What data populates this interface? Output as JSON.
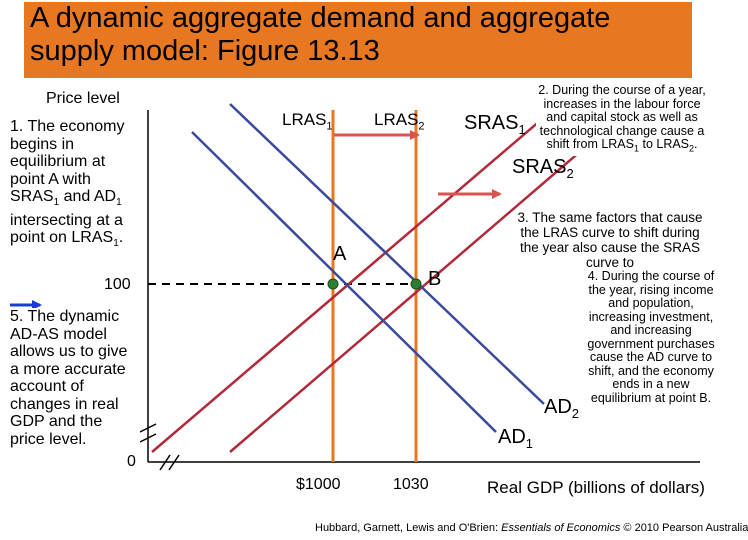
{
  "title": "A dynamic aggregate demand and aggregate supply model: Figure 13.13",
  "axes": {
    "y_label": "Price level",
    "x_label": "Real GDP (billions of dollars)",
    "y_tick_100": "100",
    "y_origin": "0",
    "x_tick_1000": "$1000",
    "x_tick_1030": "1030"
  },
  "curves": {
    "lras1": "LRAS",
    "lras1_sub": "1",
    "lras2": "LRAS",
    "lras2_sub": "2",
    "sras1": "SRAS",
    "sras1_sub": "1",
    "sras2": "SRAS",
    "sras2_sub": "2",
    "ad1": "AD",
    "ad1_sub": "1",
    "ad2": "AD",
    "ad2_sub": "2"
  },
  "points": {
    "a": "A",
    "b": "B"
  },
  "notes": {
    "n1_pre": "1. The economy begins in equilibrium at point A with SRAS",
    "n1_sub1": "1",
    "n1_mid": " and AD",
    "n1_sub2": "1",
    "n1_post": " intersecting at a point on LRAS",
    "n1_sub3": "1",
    "n1_end": ".",
    "n2_pre": "2. During the course of a year, increases in the labour force and capital stock as well as technological change cause a shift from LRAS",
    "n2_sub1": "1",
    "n2_mid": " to LRAS",
    "n2_sub2": "2",
    "n2_end": ".",
    "n3": "3. The same factors that cause the LRAS curve to shift during the year also cause the SRAS curve to",
    "n4": "4. During the course of the year, rising income and population, increasing investment, and increasing government purchases cause the AD curve to shift, and the economy ends in a new equilibrium at point B.",
    "n5": "5. The dynamic AD-AS model allows us to give a more accurate account of changes in real GDP and the price level."
  },
  "credit_pre": "Hubbard, Garnett, Lewis and O'Brien: ",
  "credit_book": "Essentials of Economics",
  "credit_post": " © 2010 Pearson Australia",
  "colors": {
    "title_bar": "#e87722",
    "lras": "#e87722",
    "sras": "#b02a3a",
    "ad": "#3a4a9a",
    "point": "#2e7d32",
    "arrow_red": "#d9534f",
    "arrow_blue": "#1a3ad8"
  }
}
